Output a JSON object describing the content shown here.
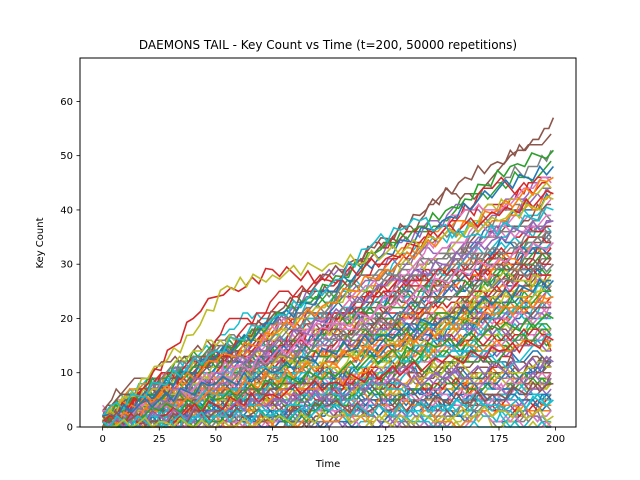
{
  "chart_data": {
    "type": "line",
    "title": "DAEMONS TAIL - Key Count vs Time (t=200, 50000 repetitions)",
    "xlabel": "Time",
    "ylabel": "Key Count",
    "xlim": [
      -10,
      209
    ],
    "ylim": [
      0,
      68
    ],
    "xticks": [
      0,
      25,
      50,
      75,
      100,
      125,
      150,
      175,
      200
    ],
    "yticks": [
      0,
      10,
      20,
      30,
      40,
      50,
      60
    ],
    "xtick_labels": [
      "0",
      "25",
      "50",
      "75",
      "100",
      "125",
      "150",
      "175",
      "200"
    ],
    "ytick_labels": [
      "0",
      "10",
      "20",
      "30",
      "40",
      "50",
      "60"
    ],
    "grid": false,
    "legend": "none",
    "palette": [
      "#1f77b4",
      "#ff7f0e",
      "#2ca02c",
      "#d62728",
      "#9467bd",
      "#8c564b",
      "#e377c2",
      "#7f7f7f",
      "#bcbd22",
      "#17becf"
    ],
    "series": [
      {
        "color": "#8c564b",
        "values": [
          [
            0,
            1
          ],
          [
            20,
            5
          ],
          [
            40,
            10
          ],
          [
            60,
            16
          ],
          [
            80,
            22
          ],
          [
            100,
            28
          ],
          [
            120,
            33
          ],
          [
            140,
            39
          ],
          [
            160,
            46
          ],
          [
            180,
            50
          ],
          [
            190,
            53
          ],
          [
            195,
            55
          ],
          [
            199,
            57
          ]
        ]
      },
      {
        "color": "#2ca02c",
        "values": [
          [
            0,
            2
          ],
          [
            20,
            6
          ],
          [
            40,
            11
          ],
          [
            60,
            15
          ],
          [
            80,
            21
          ],
          [
            100,
            26
          ],
          [
            120,
            32
          ],
          [
            140,
            37
          ],
          [
            160,
            42
          ],
          [
            180,
            48
          ],
          [
            199,
            51
          ]
        ]
      },
      {
        "color": "#1f77b4",
        "values": [
          [
            0,
            1
          ],
          [
            25,
            7
          ],
          [
            50,
            13
          ],
          [
            75,
            19
          ],
          [
            100,
            25
          ],
          [
            125,
            32
          ],
          [
            150,
            38
          ],
          [
            175,
            44
          ],
          [
            199,
            48
          ]
        ]
      },
      {
        "color": "#ff7f0e",
        "values": [
          [
            0,
            2
          ],
          [
            25,
            6
          ],
          [
            50,
            12
          ],
          [
            75,
            17
          ],
          [
            100,
            23
          ],
          [
            125,
            29
          ],
          [
            150,
            35
          ],
          [
            175,
            40
          ],
          [
            199,
            46
          ]
        ]
      },
      {
        "color": "#d62728",
        "values": [
          [
            0,
            0
          ],
          [
            20,
            8
          ],
          [
            40,
            20
          ],
          [
            50,
            24
          ],
          [
            60,
            25
          ],
          [
            75,
            29
          ],
          [
            100,
            27
          ],
          [
            125,
            31
          ],
          [
            150,
            36
          ],
          [
            175,
            39
          ],
          [
            199,
            43
          ]
        ]
      },
      {
        "color": "#bcbd22",
        "values": [
          [
            0,
            1
          ],
          [
            20,
            9
          ],
          [
            40,
            17
          ],
          [
            55,
            26
          ],
          [
            75,
            28
          ],
          [
            100,
            30
          ],
          [
            125,
            32
          ],
          [
            150,
            35
          ],
          [
            175,
            38
          ],
          [
            199,
            42
          ]
        ]
      },
      {
        "color": "#17becf",
        "values": [
          [
            0,
            2
          ],
          [
            25,
            8
          ],
          [
            50,
            14
          ],
          [
            75,
            20
          ],
          [
            100,
            26
          ],
          [
            120,
            34
          ],
          [
            140,
            38
          ],
          [
            160,
            35
          ],
          [
            180,
            37
          ],
          [
            199,
            40
          ]
        ]
      },
      {
        "color": "#9467bd",
        "values": [
          [
            0,
            0
          ],
          [
            25,
            5
          ],
          [
            50,
            10
          ],
          [
            75,
            15
          ],
          [
            100,
            20
          ],
          [
            125,
            26
          ],
          [
            150,
            30
          ],
          [
            175,
            35
          ],
          [
            199,
            38
          ]
        ]
      },
      {
        "color": "#e377c2",
        "values": [
          [
            0,
            1
          ],
          [
            25,
            4
          ],
          [
            50,
            9
          ],
          [
            75,
            13
          ],
          [
            100,
            18
          ],
          [
            125,
            22
          ],
          [
            150,
            27
          ],
          [
            175,
            31
          ],
          [
            199,
            34
          ]
        ]
      },
      {
        "color": "#7f7f7f",
        "values": [
          [
            0,
            0
          ],
          [
            25,
            4
          ],
          [
            50,
            8
          ],
          [
            75,
            12
          ],
          [
            100,
            16
          ],
          [
            125,
            19
          ],
          [
            150,
            24
          ],
          [
            175,
            27
          ],
          [
            199,
            30
          ]
        ]
      },
      {
        "color": "#1f77b4",
        "values": [
          [
            0,
            2
          ],
          [
            25,
            5
          ],
          [
            50,
            8
          ],
          [
            75,
            10
          ],
          [
            100,
            14
          ],
          [
            125,
            17
          ],
          [
            150,
            20
          ],
          [
            175,
            24
          ],
          [
            199,
            27
          ]
        ]
      },
      {
        "color": "#ff7f0e",
        "values": [
          [
            0,
            1
          ],
          [
            25,
            3
          ],
          [
            50,
            6
          ],
          [
            75,
            9
          ],
          [
            100,
            12
          ],
          [
            125,
            15
          ],
          [
            150,
            18
          ],
          [
            175,
            21
          ],
          [
            199,
            24
          ]
        ]
      },
      {
        "color": "#2ca02c",
        "values": [
          [
            0,
            0
          ],
          [
            25,
            3
          ],
          [
            50,
            5
          ],
          [
            75,
            8
          ],
          [
            100,
            10
          ],
          [
            125,
            13
          ],
          [
            150,
            15
          ],
          [
            175,
            18
          ],
          [
            199,
            20
          ]
        ]
      },
      {
        "color": "#d62728",
        "values": [
          [
            0,
            1
          ],
          [
            25,
            2
          ],
          [
            50,
            4
          ],
          [
            75,
            6
          ],
          [
            100,
            8
          ],
          [
            125,
            10
          ],
          [
            150,
            12
          ],
          [
            175,
            14
          ],
          [
            199,
            16
          ]
        ]
      },
      {
        "color": "#9467bd",
        "values": [
          [
            0,
            0
          ],
          [
            25,
            2
          ],
          [
            50,
            3
          ],
          [
            75,
            5
          ],
          [
            100,
            6
          ],
          [
            125,
            8
          ],
          [
            150,
            9
          ],
          [
            175,
            11
          ],
          [
            199,
            12
          ]
        ]
      },
      {
        "color": "#8c564b",
        "values": [
          [
            0,
            2
          ],
          [
            25,
            1
          ],
          [
            50,
            3
          ],
          [
            75,
            2
          ],
          [
            100,
            4
          ],
          [
            125,
            3
          ],
          [
            150,
            5
          ],
          [
            175,
            6
          ],
          [
            199,
            8
          ]
        ]
      },
      {
        "color": "#17becf",
        "values": [
          [
            0,
            1
          ],
          [
            25,
            1
          ],
          [
            50,
            2
          ],
          [
            75,
            2
          ],
          [
            100,
            3
          ],
          [
            125,
            3
          ],
          [
            150,
            4
          ],
          [
            175,
            4
          ],
          [
            199,
            5
          ]
        ]
      },
      {
        "color": "#bcbd22",
        "values": [
          [
            0,
            0
          ],
          [
            25,
            1
          ],
          [
            50,
            0
          ],
          [
            75,
            1
          ],
          [
            100,
            2
          ],
          [
            125,
            1
          ],
          [
            150,
            2
          ],
          [
            175,
            3
          ],
          [
            199,
            2
          ]
        ]
      }
    ]
  }
}
